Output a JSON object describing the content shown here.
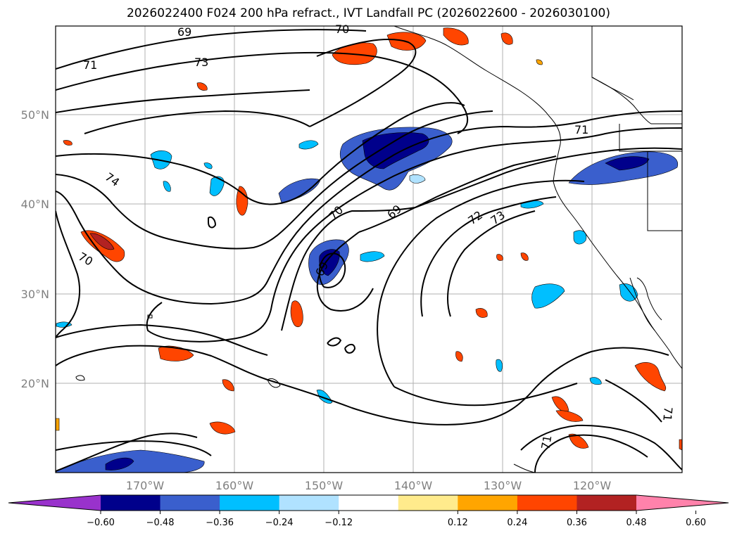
{
  "title": "2026022400 F024 200 hPa refract., IVT Landfall PC (2026022600 - 2026030100)",
  "latitude_labels": [
    {
      "value": 50,
      "label": "50°N"
    },
    {
      "value": 40,
      "label": "40°N"
    },
    {
      "value": 30,
      "label": "30°N"
    },
    {
      "value": 20,
      "label": "20°N"
    }
  ],
  "longitude_labels": [
    {
      "value": -170,
      "label": "170°W"
    },
    {
      "value": -160,
      "label": "160°W"
    },
    {
      "value": -150,
      "label": "150°W"
    },
    {
      "value": -140,
      "label": "140°W"
    },
    {
      "value": -130,
      "label": "130°W"
    },
    {
      "value": -120,
      "label": "120°W"
    }
  ],
  "contour_labels": [
    "69",
    "70",
    "71",
    "73",
    "74",
    "70",
    "70",
    "69",
    "69",
    "72",
    "73",
    "71",
    "71",
    "71"
  ],
  "colorbar": {
    "ticks": [
      "−0.60",
      "−0.48",
      "−0.36",
      "−0.24",
      "−0.12",
      "0.12",
      "0.24",
      "0.36",
      "0.48",
      "0.60"
    ],
    "colors": [
      "#9932cc",
      "#00008b",
      "#3a5fcd",
      "#00bfff",
      "#b0e2ff",
      "#ffffff",
      "#ffeb8c",
      "#ffa500",
      "#ff4500",
      "#b22222",
      "#ff82ab"
    ]
  },
  "colors": {
    "contour": "#000000",
    "grid": "#b0b0b0",
    "coast": "#000000"
  }
}
